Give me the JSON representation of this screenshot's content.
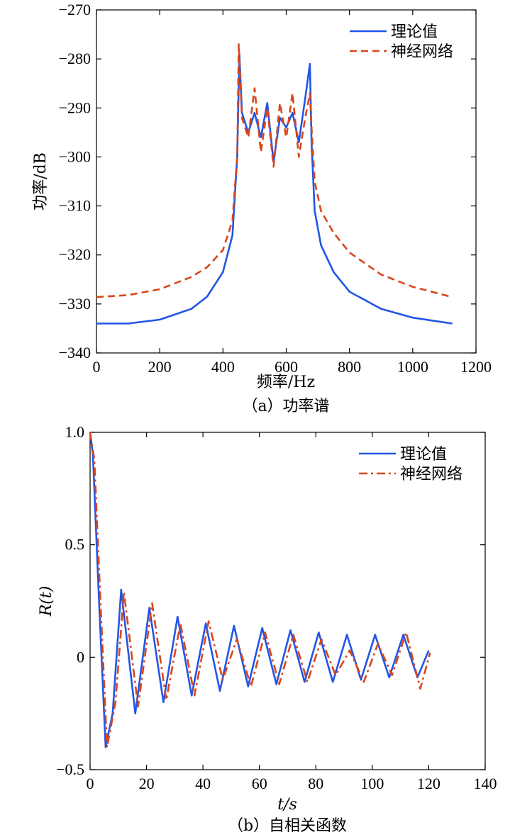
{
  "chart_data": [
    {
      "type": "line",
      "caption": "（a）功率谱",
      "xlabel": "频率/Hz",
      "ylabel": "功率/dB",
      "xlim": [
        0,
        1200
      ],
      "ylim": [
        -340,
        -270
      ],
      "xticks": [
        "0",
        "200",
        "400",
        "600",
        "800",
        "1000",
        "1200"
      ],
      "yticks": [
        "−340",
        "−330",
        "−320",
        "−310",
        "−300",
        "−290",
        "−280",
        "−270"
      ],
      "legend_position": "top-right",
      "grid": false,
      "series": [
        {
          "name": "理论值",
          "color": "#2255e8",
          "style": "solid",
          "x": [
            0,
            100,
            200,
            300,
            350,
            400,
            430,
            445,
            452,
            460,
            480,
            500,
            520,
            540,
            560,
            580,
            600,
            620,
            640,
            660,
            675,
            680,
            690,
            710,
            750,
            800,
            900,
            1000,
            1125
          ],
          "y": [
            -334,
            -334,
            -333.2,
            -331,
            -328.5,
            -323.5,
            -316,
            -300,
            -279,
            -291,
            -295,
            -291,
            -296,
            -289,
            -301,
            -292,
            -294,
            -291,
            -297,
            -288,
            -281,
            -297,
            -311,
            -318,
            -323.5,
            -327.5,
            -331,
            -332.8,
            -334
          ]
        },
        {
          "name": "神经网络",
          "color": "#d9461c",
          "style": "dashed",
          "x": [
            0,
            100,
            200,
            300,
            350,
            400,
            430,
            445,
            450,
            460,
            480,
            500,
            520,
            540,
            560,
            580,
            600,
            620,
            640,
            660,
            675,
            680,
            690,
            710,
            750,
            800,
            900,
            1000,
            1125
          ],
          "y": [
            -328.6,
            -328.2,
            -327,
            -324.5,
            -322.5,
            -319,
            -313,
            -300,
            -277,
            -292,
            -296,
            -286,
            -299,
            -290,
            -302,
            -289,
            -296,
            -287,
            -300,
            -292,
            -287,
            -294,
            -305,
            -311,
            -315.5,
            -319.5,
            -324,
            -326.5,
            -328.6
          ]
        }
      ]
    },
    {
      "type": "line",
      "caption": "（b）自相关函数",
      "xlabel": "t/s",
      "ylabel": "R(t)",
      "xlim": [
        0,
        140
      ],
      "ylim": [
        -0.5,
        1.0
      ],
      "xticks": [
        "0",
        "20",
        "40",
        "60",
        "80",
        "100",
        "120",
        "140"
      ],
      "yticks": [
        "−0.5",
        "0",
        "0.5",
        "1.0"
      ],
      "legend_position": "top-right",
      "grid": false,
      "series": [
        {
          "name": "理论值",
          "color": "#2255e8",
          "style": "solid",
          "x": [
            0,
            1,
            3,
            5.5,
            8,
            11,
            16,
            21,
            26,
            31,
            36,
            41,
            46,
            51,
            56,
            61,
            66,
            71,
            76,
            81,
            86,
            91,
            96,
            101,
            106,
            111,
            116,
            120
          ],
          "y": [
            1.0,
            0.9,
            0.3,
            -0.4,
            -0.25,
            0.3,
            -0.25,
            0.22,
            -0.2,
            0.18,
            -0.17,
            0.15,
            -0.15,
            0.14,
            -0.13,
            0.13,
            -0.12,
            0.12,
            -0.11,
            0.11,
            -0.11,
            0.1,
            -0.1,
            0.1,
            -0.09,
            0.1,
            -0.09,
            0.03
          ]
        },
        {
          "name": "神经网络",
          "color": "#d9461c",
          "style": "dashdot",
          "x": [
            0,
            1.5,
            3.5,
            6,
            9,
            12,
            17,
            22,
            27,
            32,
            37,
            42,
            47,
            52,
            57,
            62,
            67,
            72,
            77,
            82,
            87,
            92,
            97,
            102,
            107,
            112,
            117,
            120.5
          ],
          "y": [
            1.0,
            0.88,
            0.3,
            -0.4,
            -0.2,
            0.29,
            -0.22,
            0.24,
            -0.19,
            0.15,
            -0.17,
            0.16,
            -0.1,
            0.08,
            -0.13,
            0.11,
            -0.12,
            0.1,
            -0.11,
            0.08,
            -0.08,
            0.03,
            -0.11,
            0.06,
            -0.08,
            0.11,
            -0.14,
            0.02
          ]
        }
      ]
    }
  ]
}
